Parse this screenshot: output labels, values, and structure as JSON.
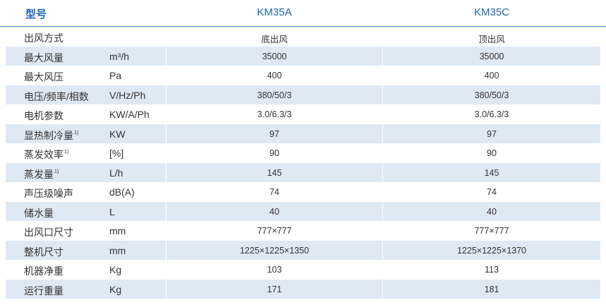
{
  "header": {
    "model_label": "型号",
    "col_a": "KM35A",
    "col_b": "KM35C"
  },
  "rows": [
    {
      "name": "出风方式",
      "sup": "",
      "unit": "",
      "a": "底出风",
      "b": "顶出风"
    },
    {
      "name": "最大风量",
      "sup": "",
      "unit": "m³/h",
      "a": "35000",
      "b": "35000"
    },
    {
      "name": "最大风压",
      "sup": "",
      "unit": "Pa",
      "a": "400",
      "b": "400"
    },
    {
      "name": "电压/频率/相数",
      "sup": "",
      "unit": "V/Hz/Ph",
      "a": "380/50/3",
      "b": "380/50/3"
    },
    {
      "name": "电机参数",
      "sup": "",
      "unit": "KW/A/Ph",
      "a": "3.0/6.3/3",
      "b": "3.0/6.3/3"
    },
    {
      "name": "显热制冷量",
      "sup": "1)",
      "unit": "KW",
      "a": "97",
      "b": "97"
    },
    {
      "name": "蒸发效率",
      "sup": "1)",
      "unit": "[%]",
      "a": "90",
      "b": "90"
    },
    {
      "name": "蒸发量",
      "sup": "1)",
      "unit": "L/h",
      "a": "145",
      "b": "145"
    },
    {
      "name": "声压级噪声",
      "sup": "",
      "unit": "dB(A)",
      "a": "74",
      "b": "74"
    },
    {
      "name": "储水量",
      "sup": "",
      "unit": "L",
      "a": "40",
      "b": "40"
    },
    {
      "name": "出风口尺寸",
      "sup": "",
      "unit": "mm",
      "a": "777×777",
      "b": "777×777"
    },
    {
      "name": "整机尺寸",
      "sup": "",
      "unit": "mm",
      "a": "1225×1225×1350",
      "b": "1225×1225×1370"
    },
    {
      "name": "机器净重",
      "sup": "",
      "unit": "Kg",
      "a": "103",
      "b": "113"
    },
    {
      "name": "运行重量",
      "sup": "",
      "unit": "Kg",
      "a": "171",
      "b": "181"
    }
  ]
}
